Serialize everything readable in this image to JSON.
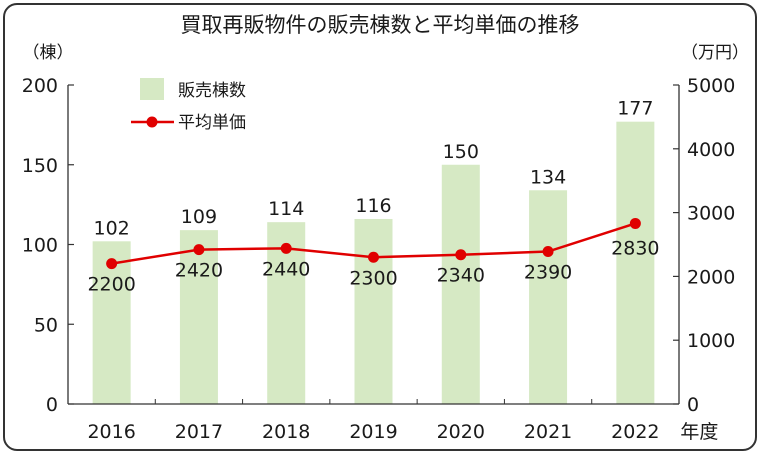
{
  "chart_data": {
    "type": "bar+line",
    "title": "買取再販物件の販売棟数と平均単価の推移",
    "left_unit": "（棟）",
    "right_unit": "（万円）",
    "x_suffix": "年度",
    "categories": [
      "2016",
      "2017",
      "2018",
      "2019",
      "2020",
      "2021",
      "2022"
    ],
    "series": [
      {
        "name": "販売棟数",
        "type": "bar",
        "axis": "left",
        "color": "#d6e9c4",
        "values": [
          102,
          109,
          114,
          116,
          150,
          134,
          177
        ]
      },
      {
        "name": "平均単価",
        "type": "line",
        "axis": "right",
        "color": "#e00000",
        "values": [
          2200,
          2420,
          2440,
          2300,
          2340,
          2390,
          2830
        ]
      }
    ],
    "left_axis": {
      "min": 0,
      "max": 200,
      "ticks": [
        0,
        50,
        100,
        150,
        200
      ]
    },
    "right_axis": {
      "min": 0,
      "max": 5000,
      "ticks": [
        0,
        1000,
        2000,
        3000,
        4000,
        5000
      ]
    },
    "legend_position": "top-left",
    "grid": false
  }
}
